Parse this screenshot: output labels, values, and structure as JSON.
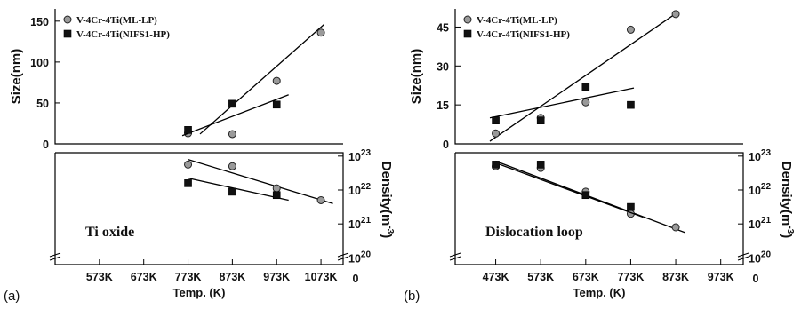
{
  "chart_data": [
    {
      "type": "scatter",
      "panel_label": "(a)",
      "annotation": "Ti oxide",
      "xlabel": "Temp.  (K)",
      "x_ticks": [
        "573K",
        "673K",
        "773K",
        "873K",
        "973K",
        "1073K"
      ],
      "x_tick_values": [
        573,
        673,
        773,
        873,
        973,
        1073
      ],
      "xlim": [
        473,
        1123
      ],
      "top": {
        "ylabel": "Size(nm)",
        "ylim": [
          0,
          165
        ],
        "y_ticks": [
          0,
          50,
          100,
          150
        ],
        "series": [
          {
            "name": "V-4Cr-4Ti(ML-LP)",
            "marker": "circle",
            "x": [
              773,
              873,
              973,
              1073
            ],
            "y": [
              13,
              12,
              77,
              136
            ],
            "fit": [
              [
                800,
                12
              ],
              [
                1080,
                146
              ]
            ]
          },
          {
            "name": "V-4Cr-4Ti(NIFS1-HP)",
            "marker": "square",
            "x": [
              773,
              873,
              973
            ],
            "y": [
              17,
              49,
              48
            ],
            "fit": [
              [
                760,
                10
              ],
              [
                1000,
                60
              ]
            ]
          }
        ]
      },
      "bottom": {
        "ylabel_main": "Density(m",
        "ylabel_sup": "-3",
        "ylabel_close": ")",
        "y_scale": "log",
        "y_exponents": [
          20,
          21,
          22,
          23
        ],
        "y_zero_label": "0",
        "y_tick_base": "10",
        "ylim_exp": [
          19.8,
          23.1
        ],
        "series": [
          {
            "name": "V-4Cr-4Ti(ML-LP)",
            "marker": "circle",
            "x": [
              773,
              873,
              973,
              1073
            ],
            "y_exp": [
              22.75,
              22.7,
              22.05,
              21.7
            ],
            "fit": [
              [
                773,
                22.9
              ],
              [
                1100,
                21.6
              ]
            ]
          },
          {
            "name": "V-4Cr-4Ti(NIFS1-HP)",
            "marker": "square",
            "x": [
              773,
              873,
              973
            ],
            "y_exp": [
              22.2,
              21.95,
              21.85
            ],
            "fit": [
              [
                773,
                22.35
              ],
              [
                1000,
                21.7
              ]
            ]
          }
        ]
      }
    },
    {
      "type": "scatter",
      "panel_label": "(b)",
      "annotation": "Dislocation loop",
      "xlabel": "Temp.  (K)",
      "x_ticks": [
        "473K",
        "573K",
        "673K",
        "773K",
        "873K",
        "973K"
      ],
      "x_tick_values": [
        473,
        573,
        673,
        773,
        873,
        973
      ],
      "xlim": [
        383,
        1023
      ],
      "top": {
        "ylabel": "Size(nm)",
        "ylim": [
          0,
          52
        ],
        "y_ticks": [
          0,
          15,
          30,
          45
        ],
        "series": [
          {
            "name": "V-4Cr-4Ti(ML-LP)",
            "marker": "circle",
            "x": [
              473,
              573,
              673,
              773,
              873
            ],
            "y": [
              4,
              10,
              16,
              44,
              50
            ],
            "fit": [
              [
                460,
                1
              ],
              [
                880,
                51
              ]
            ]
          },
          {
            "name": "V-4Cr-4Ti(NIFS1-HP)",
            "marker": "square",
            "x": [
              473,
              573,
              673,
              773
            ],
            "y": [
              9,
              9,
              22,
              15
            ],
            "fit": [
              [
                460,
                10
              ],
              [
                780,
                21.5
              ]
            ]
          }
        ]
      },
      "bottom": {
        "ylabel_main": "Density(m",
        "ylabel_sup": "-3",
        "ylabel_close": ")",
        "y_scale": "log",
        "y_exponents": [
          20,
          21,
          22,
          23
        ],
        "y_zero_label": "0",
        "y_tick_base": "10",
        "ylim_exp": [
          19.8,
          23.1
        ],
        "series": [
          {
            "name": "V-4Cr-4Ti(ML-LP)",
            "marker": "circle",
            "x": [
              473,
              573,
              673,
              773,
              873
            ],
            "y_exp": [
              22.7,
              22.65,
              21.95,
              21.3,
              20.9
            ],
            "fit": [
              [
                473,
                22.85
              ],
              [
                893,
                20.75
              ]
            ]
          },
          {
            "name": "V-4Cr-4Ti(NIFS1-HP)",
            "marker": "square",
            "x": [
              473,
              573,
              673,
              773
            ],
            "y_exp": [
              22.75,
              22.75,
              21.85,
              21.5
            ],
            "fit": [
              [
                473,
                22.8
              ],
              [
                800,
                21.2
              ]
            ]
          }
        ]
      }
    }
  ]
}
